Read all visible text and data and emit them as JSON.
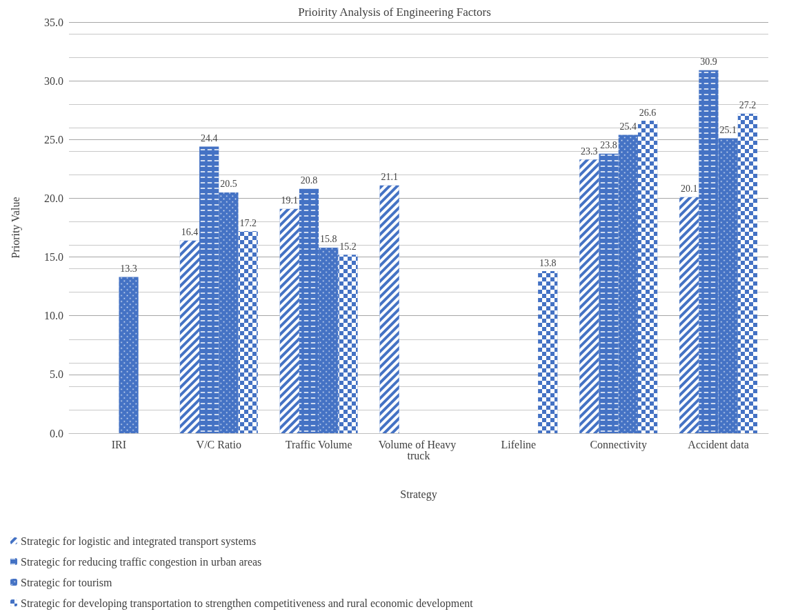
{
  "chart_data": {
    "type": "bar",
    "title": "Prioirity Analysis of Engineering Factors",
    "xlabel": "Strategy",
    "ylabel": "Priority Value",
    "categories": [
      "IRI",
      "V/C Ratio",
      "Traffic Volume",
      "Volume of Heavy truck",
      "Lifeline",
      "Connectivity",
      "Accident data"
    ],
    "series": [
      {
        "name": "Strategic for logistic and integrated transport systems",
        "color": "#4472c4",
        "values": [
          null,
          16.4,
          19.1,
          21.1,
          null,
          23.3,
          20.1
        ]
      },
      {
        "name": "Strategic for reducing traffic congestion in urban areas",
        "color": "#4472c4",
        "values": [
          null,
          24.4,
          20.8,
          null,
          null,
          23.8,
          30.9
        ]
      },
      {
        "name": "Strategic for tourism",
        "color": "#4472c4",
        "values": [
          13.3,
          20.5,
          15.8,
          null,
          null,
          25.4,
          25.1
        ]
      },
      {
        "name": "Strategic for developing transportation to strengthen competitiveness and rural economic development",
        "color": "#4472c4",
        "values": [
          null,
          17.2,
          15.2,
          null,
          13.8,
          26.6,
          27.2
        ]
      }
    ],
    "ylim": [
      0,
      35
    ],
    "yticks": [
      {
        "value": 0,
        "label": "0.0"
      },
      {
        "value": 5,
        "label": "5.0"
      },
      {
        "value": 10,
        "label": "10.0"
      },
      {
        "value": 15,
        "label": "15.0"
      },
      {
        "value": 20,
        "label": "20.0"
      },
      {
        "value": 25,
        "label": "25.0"
      },
      {
        "value": 30,
        "label": "30.0"
      },
      {
        "value": 35,
        "label": "35.0"
      }
    ],
    "grid": true,
    "legend": "bottom",
    "data_labels": true
  }
}
